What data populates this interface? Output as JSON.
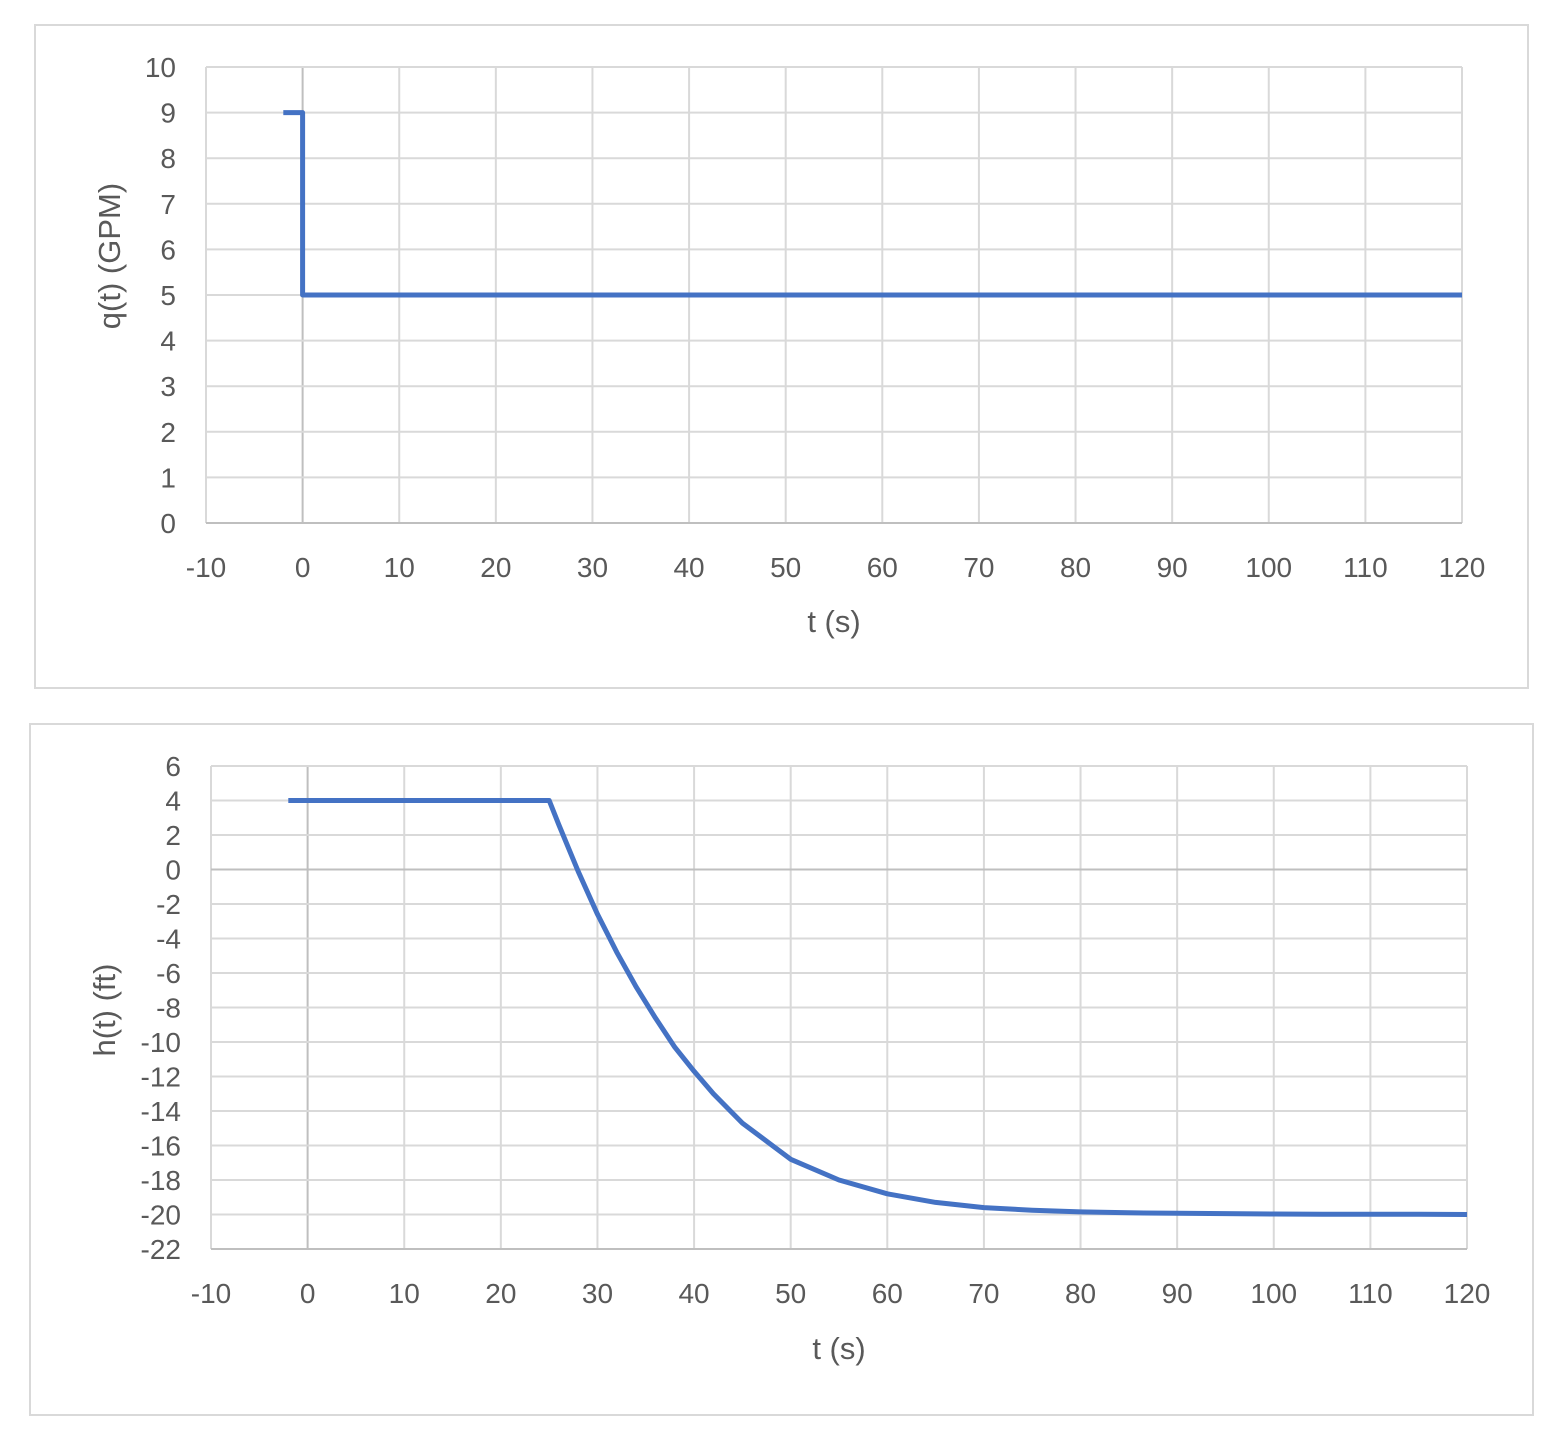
{
  "colors": {
    "series": "#4472c4",
    "grid": "#d9d9d9",
    "zero_axis": "#bfbfbf",
    "text": "#595959"
  },
  "chart_data": [
    {
      "type": "line",
      "xlabel": "t (s)",
      "ylabel": "q(t) (GPM)",
      "xlim": [
        -10,
        120
      ],
      "ylim": [
        0,
        10
      ],
      "x_ticks": [
        "-10",
        "0",
        "10",
        "20",
        "30",
        "40",
        "50",
        "60",
        "70",
        "80",
        "90",
        "100",
        "110",
        "120"
      ],
      "y_ticks": [
        "0",
        "1",
        "2",
        "3",
        "4",
        "5",
        "6",
        "7",
        "8",
        "9",
        "10"
      ],
      "grid": true,
      "legend": "none",
      "series": [
        {
          "x": [
            -2,
            0,
            0,
            120
          ],
          "y": [
            9,
            9,
            5,
            5
          ]
        }
      ]
    },
    {
      "type": "line",
      "xlabel": "t (s)",
      "ylabel": "h(t) (ft)",
      "xlim": [
        -10,
        120
      ],
      "ylim": [
        -22,
        6
      ],
      "x_ticks": [
        "-10",
        "0",
        "10",
        "20",
        "30",
        "40",
        "50",
        "60",
        "70",
        "80",
        "90",
        "100",
        "110",
        "120"
      ],
      "y_ticks": [
        "6",
        "4",
        "2",
        "0",
        "-2",
        "-4",
        "-6",
        "-8",
        "-10",
        "-12",
        "-14",
        "-16",
        "-18",
        "-20",
        "-22"
      ],
      "grid": true,
      "legend": "none",
      "series": [
        {
          "x": [
            -2,
            0,
            10,
            20,
            25,
            26,
            28,
            30,
            32,
            34,
            36,
            38,
            40,
            42,
            45,
            50,
            55,
            60,
            65,
            70,
            75,
            80,
            85,
            90,
            95,
            100,
            105,
            110,
            115,
            120
          ],
          "y": [
            4,
            4,
            4,
            4,
            4,
            2.6,
            -0.1,
            -2.6,
            -4.8,
            -6.8,
            -8.6,
            -10.3,
            -11.7,
            -13.0,
            -14.7,
            -16.8,
            -18.0,
            -18.8,
            -19.3,
            -19.6,
            -19.75,
            -19.85,
            -19.9,
            -19.93,
            -19.95,
            -19.97,
            -19.98,
            -19.99,
            -19.99,
            -20
          ]
        }
      ]
    }
  ]
}
